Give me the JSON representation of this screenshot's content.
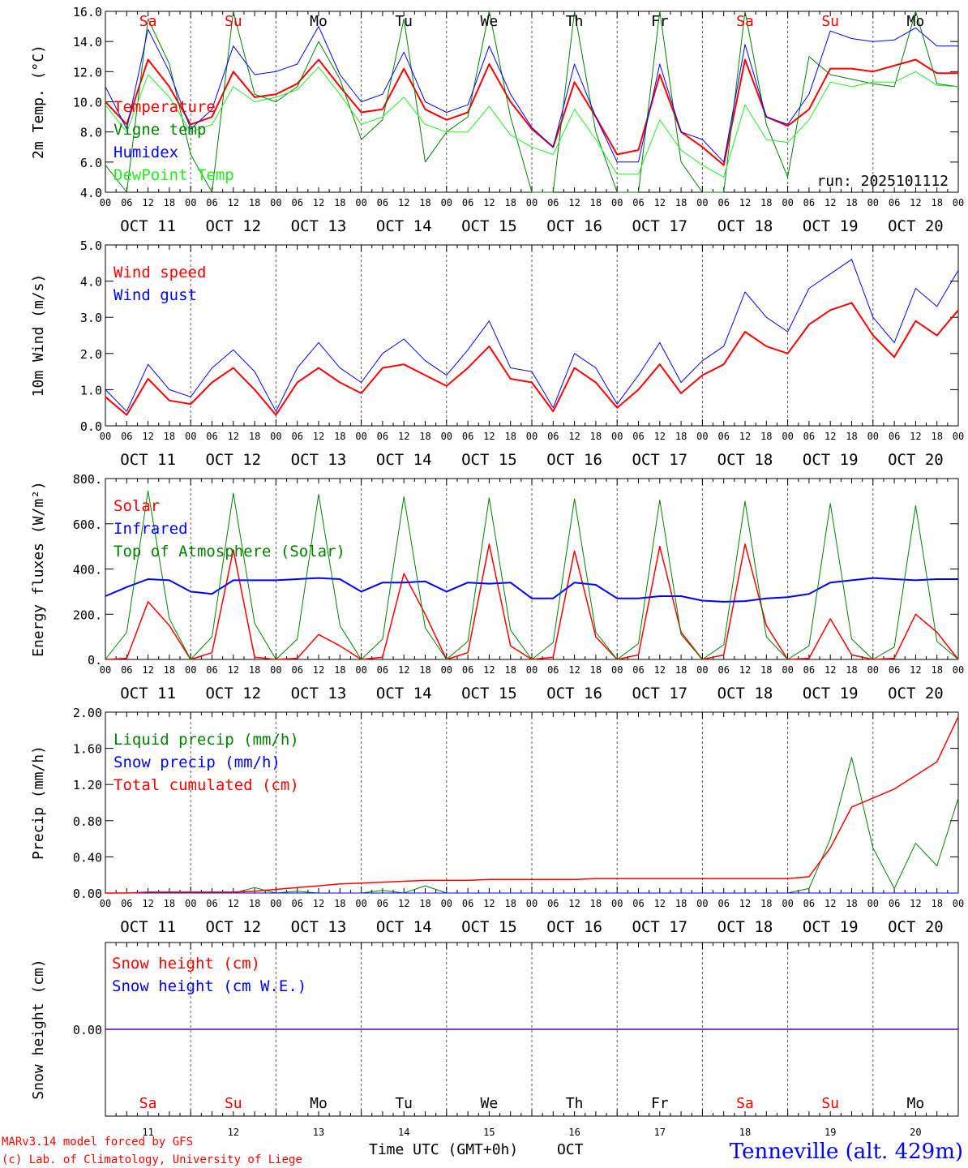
{
  "colors": {
    "red": "#ff0000",
    "darkgreen": "#008000",
    "blue": "#0000ff",
    "lightgreen": "#22ee22",
    "black": "#000000"
  },
  "days": {
    "dates": [
      "OCT 11",
      "OCT 12",
      "OCT 13",
      "OCT 14",
      "OCT 15",
      "OCT 16",
      "OCT 17",
      "OCT 18",
      "OCT 19",
      "OCT 20"
    ],
    "names": [
      "Sa",
      "Su",
      "Mo",
      "Tu",
      "We",
      "Th",
      "Fr",
      "Sa",
      "Su",
      "Mo"
    ],
    "name_colors": [
      "#ff0000",
      "#ff0000",
      "#000000",
      "#000000",
      "#000000",
      "#000000",
      "#000000",
      "#ff0000",
      "#ff0000",
      "#000000"
    ],
    "numbers": [
      "11",
      "12",
      "13",
      "14",
      "15",
      "16",
      "17",
      "18",
      "19",
      "20"
    ],
    "hour_ticks": [
      "00",
      "06",
      "12",
      "18"
    ],
    "final_tick": "00"
  },
  "chart_data": [
    {
      "id": "temperature",
      "type": "line",
      "ylabel": "2m Temp. (°C)",
      "ylim": [
        4.0,
        16.0
      ],
      "yticks": [
        4.0,
        6.0,
        8.0,
        10.0,
        12.0,
        14.0,
        16.0
      ],
      "ytick_labels": [
        "4.0",
        "6.0",
        "8.0",
        "10.0",
        "12.0",
        "14.0",
        "16.0"
      ],
      "annotation": "run: 2025101112",
      "x_hours": [
        0,
        6,
        12,
        18,
        24,
        30,
        36,
        42,
        48,
        54,
        60,
        66,
        72,
        78,
        84,
        90,
        96,
        102,
        108,
        114,
        120,
        126,
        132,
        138,
        144,
        150,
        156,
        162,
        168,
        174,
        180,
        186,
        192,
        198,
        204,
        210,
        216,
        222,
        228,
        234,
        240
      ],
      "series": [
        {
          "name": "Temperature",
          "color": "#ff0000",
          "width": 2,
          "values": [
            10.0,
            8.5,
            12.8,
            11.0,
            8.5,
            9.0,
            12.0,
            10.3,
            10.5,
            11.2,
            12.8,
            11.0,
            9.3,
            9.5,
            12.2,
            9.5,
            8.8,
            9.3,
            12.5,
            10.0,
            8.2,
            7.0,
            11.3,
            9.0,
            6.5,
            6.8,
            11.8,
            8.0,
            7.0,
            5.8,
            12.8,
            9.0,
            8.4,
            9.5,
            12.2,
            12.2,
            12.0,
            12.4,
            12.8,
            11.9,
            11.9
          ]
        },
        {
          "name": "Vigne temp",
          "color": "#008000",
          "width": 1,
          "values": [
            5.8,
            4.0,
            15.5,
            12.5,
            6.5,
            4.0,
            16.0,
            10.5,
            10.0,
            11.0,
            14.0,
            11.5,
            7.5,
            8.8,
            15.5,
            6.0,
            8.0,
            9.0,
            16.0,
            9.0,
            4.0,
            4.0,
            16.0,
            8.0,
            4.0,
            4.0,
            16.0,
            6.0,
            4.0,
            4.0,
            16.0,
            8.5,
            5.0,
            13.0,
            11.8,
            11.5,
            11.2,
            11.0,
            16.0,
            11.2,
            11.0
          ]
        },
        {
          "name": "Humidex",
          "color": "#0000ff",
          "width": 1,
          "values": [
            11.0,
            8.2,
            14.8,
            12.0,
            8.2,
            9.5,
            13.7,
            11.8,
            12.0,
            12.5,
            15.0,
            11.8,
            10.0,
            10.5,
            13.3,
            10.0,
            9.3,
            9.8,
            13.7,
            10.5,
            8.3,
            7.0,
            12.5,
            9.0,
            6.0,
            6.0,
            12.5,
            8.0,
            7.5,
            6.0,
            13.8,
            9.0,
            8.5,
            10.5,
            14.7,
            14.2,
            14.0,
            14.1,
            14.9,
            13.7,
            13.7
          ]
        },
        {
          "name": "DewPoint Temp",
          "color": "#22ee22",
          "width": 1,
          "values": [
            9.8,
            8.0,
            11.8,
            10.3,
            8.0,
            8.5,
            11.0,
            10.0,
            10.3,
            10.8,
            12.3,
            10.5,
            8.5,
            9.0,
            10.3,
            8.5,
            8.0,
            8.0,
            9.7,
            7.8,
            7.0,
            6.5,
            9.5,
            7.5,
            5.2,
            5.2,
            8.8,
            6.8,
            5.8,
            5.0,
            9.8,
            7.5,
            7.3,
            8.8,
            11.3,
            11.0,
            11.3,
            11.3,
            12.0,
            11.1,
            11.0
          ]
        }
      ]
    },
    {
      "id": "wind",
      "type": "line",
      "ylabel": "10m Wind (m/s)",
      "ylim": [
        0.0,
        5.0
      ],
      "yticks": [
        0,
        1,
        2,
        3,
        4,
        5
      ],
      "ytick_labels": [
        "0.0",
        "1.0",
        "2.0",
        "3.0",
        "4.0",
        "5.0"
      ],
      "x_hours": [
        0,
        6,
        12,
        18,
        24,
        30,
        36,
        42,
        48,
        54,
        60,
        66,
        72,
        78,
        84,
        90,
        96,
        102,
        108,
        114,
        120,
        126,
        132,
        138,
        144,
        150,
        156,
        162,
        168,
        174,
        180,
        186,
        192,
        198,
        204,
        210,
        216,
        222,
        228,
        234,
        240
      ],
      "series": [
        {
          "name": "Wind speed",
          "color": "#ff0000",
          "width": 2,
          "values": [
            0.8,
            0.3,
            1.3,
            0.7,
            0.6,
            1.2,
            1.6,
            1.0,
            0.3,
            1.2,
            1.6,
            1.2,
            0.9,
            1.6,
            1.7,
            1.4,
            1.1,
            1.6,
            2.2,
            1.3,
            1.2,
            0.4,
            1.6,
            1.2,
            0.5,
            1.0,
            1.7,
            0.9,
            1.4,
            1.7,
            2.6,
            2.2,
            2.0,
            2.8,
            3.2,
            3.4,
            2.5,
            1.9,
            2.9,
            2.5,
            3.2
          ]
        },
        {
          "name": "Wind gust",
          "color": "#0000ff",
          "width": 1,
          "values": [
            1.0,
            0.4,
            1.7,
            1.0,
            0.8,
            1.6,
            2.1,
            1.5,
            0.4,
            1.6,
            2.3,
            1.6,
            1.2,
            2.0,
            2.4,
            1.8,
            1.4,
            2.1,
            2.9,
            1.6,
            1.5,
            0.5,
            2.0,
            1.6,
            0.6,
            1.4,
            2.3,
            1.2,
            1.8,
            2.2,
            3.7,
            3.0,
            2.6,
            3.8,
            4.2,
            4.6,
            3.0,
            2.3,
            3.8,
            3.3,
            4.3
          ]
        }
      ]
    },
    {
      "id": "energy",
      "type": "line",
      "ylabel": "Energy fluxes (W/m²)",
      "ylim": [
        0,
        800
      ],
      "yticks": [
        0,
        200,
        400,
        600,
        800
      ],
      "ytick_labels": [
        "0.",
        "200.",
        "400.",
        "600.",
        "800."
      ],
      "x_hours": [
        0,
        6,
        12,
        18,
        24,
        30,
        36,
        42,
        48,
        54,
        60,
        66,
        72,
        78,
        84,
        90,
        96,
        102,
        108,
        114,
        120,
        126,
        132,
        138,
        144,
        150,
        156,
        162,
        168,
        174,
        180,
        186,
        192,
        198,
        204,
        210,
        216,
        222,
        228,
        234,
        240
      ],
      "series": [
        {
          "name": "Solar",
          "color": "#ff0000",
          "width": 1.5,
          "values": [
            0,
            5,
            255,
            150,
            0,
            30,
            485,
            10,
            0,
            5,
            110,
            60,
            0,
            10,
            380,
            200,
            0,
            30,
            510,
            60,
            0,
            10,
            480,
            100,
            0,
            20,
            500,
            120,
            0,
            20,
            510,
            150,
            0,
            5,
            180,
            20,
            0,
            5,
            200,
            120,
            0
          ]
        },
        {
          "name": "Infrared",
          "color": "#0000ff",
          "width": 2,
          "values": [
            280,
            320,
            355,
            350,
            300,
            290,
            350,
            350,
            350,
            355,
            360,
            355,
            300,
            340,
            340,
            345,
            300,
            340,
            335,
            340,
            270,
            270,
            340,
            330,
            270,
            270,
            280,
            280,
            260,
            255,
            258,
            270,
            275,
            290,
            340,
            350,
            360,
            355,
            350,
            355,
            355
          ]
        },
        {
          "name": "Top of Atmosphere (Solar)",
          "color": "#008000",
          "width": 1,
          "values": [
            0,
            120,
            745,
            180,
            0,
            100,
            735,
            160,
            0,
            90,
            730,
            150,
            0,
            90,
            720,
            140,
            0,
            80,
            715,
            130,
            0,
            75,
            710,
            120,
            0,
            70,
            705,
            110,
            0,
            65,
            700,
            100,
            0,
            60,
            690,
            90,
            0,
            55,
            680,
            80,
            0
          ]
        }
      ]
    },
    {
      "id": "precip",
      "type": "line",
      "ylabel": "Precip (mm/h)",
      "ylim": [
        0.0,
        2.0
      ],
      "yticks": [
        0.0,
        0.4,
        0.8,
        1.2,
        1.6,
        2.0
      ],
      "ytick_labels": [
        "0.00",
        "0.40",
        "0.80",
        "1.20",
        "1.60",
        "2.00"
      ],
      "x_hours": [
        0,
        6,
        12,
        18,
        24,
        30,
        36,
        42,
        48,
        54,
        60,
        66,
        72,
        78,
        84,
        90,
        96,
        102,
        108,
        114,
        120,
        126,
        132,
        138,
        144,
        150,
        156,
        162,
        168,
        174,
        180,
        186,
        192,
        198,
        204,
        210,
        216,
        222,
        228,
        234,
        240
      ],
      "series": [
        {
          "name": "Liquid precip (mm/h)",
          "color": "#008000",
          "width": 1,
          "values": [
            0,
            0,
            0,
            0,
            0,
            0,
            0,
            0.06,
            0,
            0.02,
            0,
            0,
            0,
            0.03,
            0,
            0.08,
            0,
            0,
            0,
            0,
            0,
            0,
            0,
            0,
            0,
            0,
            0,
            0,
            0,
            0,
            0,
            0,
            0,
            0.05,
            0.6,
            1.5,
            0.5,
            0.05,
            0.55,
            0.3,
            1.05
          ]
        },
        {
          "name": "Snow precip (mm/h)",
          "color": "#0000ff",
          "width": 1,
          "values": [
            0,
            0,
            0,
            0,
            0,
            0,
            0,
            0,
            0,
            0,
            0,
            0,
            0,
            0,
            0,
            0,
            0,
            0,
            0,
            0,
            0,
            0,
            0,
            0,
            0,
            0,
            0,
            0,
            0,
            0,
            0,
            0,
            0,
            0,
            0,
            0,
            0,
            0,
            0,
            0,
            0
          ]
        },
        {
          "name": "Total cumulated (cm)",
          "color": "#ff0000",
          "width": 1.5,
          "values": [
            0.0,
            0.0,
            0.01,
            0.01,
            0.01,
            0.01,
            0.01,
            0.02,
            0.04,
            0.06,
            0.08,
            0.1,
            0.11,
            0.12,
            0.13,
            0.14,
            0.14,
            0.14,
            0.15,
            0.15,
            0.15,
            0.15,
            0.15,
            0.16,
            0.16,
            0.16,
            0.16,
            0.16,
            0.16,
            0.16,
            0.16,
            0.16,
            0.16,
            0.18,
            0.5,
            0.95,
            1.05,
            1.15,
            1.3,
            1.45,
            1.95
          ]
        }
      ]
    },
    {
      "id": "snow",
      "type": "line",
      "ylabel": "Snow height (cm)",
      "ylim": [
        -1.0,
        1.0
      ],
      "yticks": [
        0.0
      ],
      "ytick_labels": [
        "0.00"
      ],
      "x_hours": [
        0,
        240
      ],
      "series": [
        {
          "name": "Snow height (cm)",
          "color": "#ff0000",
          "width": 1.5,
          "values": [
            0.0,
            0.0
          ]
        },
        {
          "name": "Snow height (cm W.E.)",
          "color": "#0000ff",
          "width": 1,
          "values": [
            0.0,
            0.0
          ]
        }
      ]
    }
  ],
  "footer": {
    "model_line1": "MARv3.14 model forced by GFS",
    "model_line2": "(c) Lab. of Climatology, University of Liege",
    "xlabel": "Time UTC (GMT+0h)",
    "month": "OCT",
    "station": "Tenneville (alt. 429m)"
  }
}
